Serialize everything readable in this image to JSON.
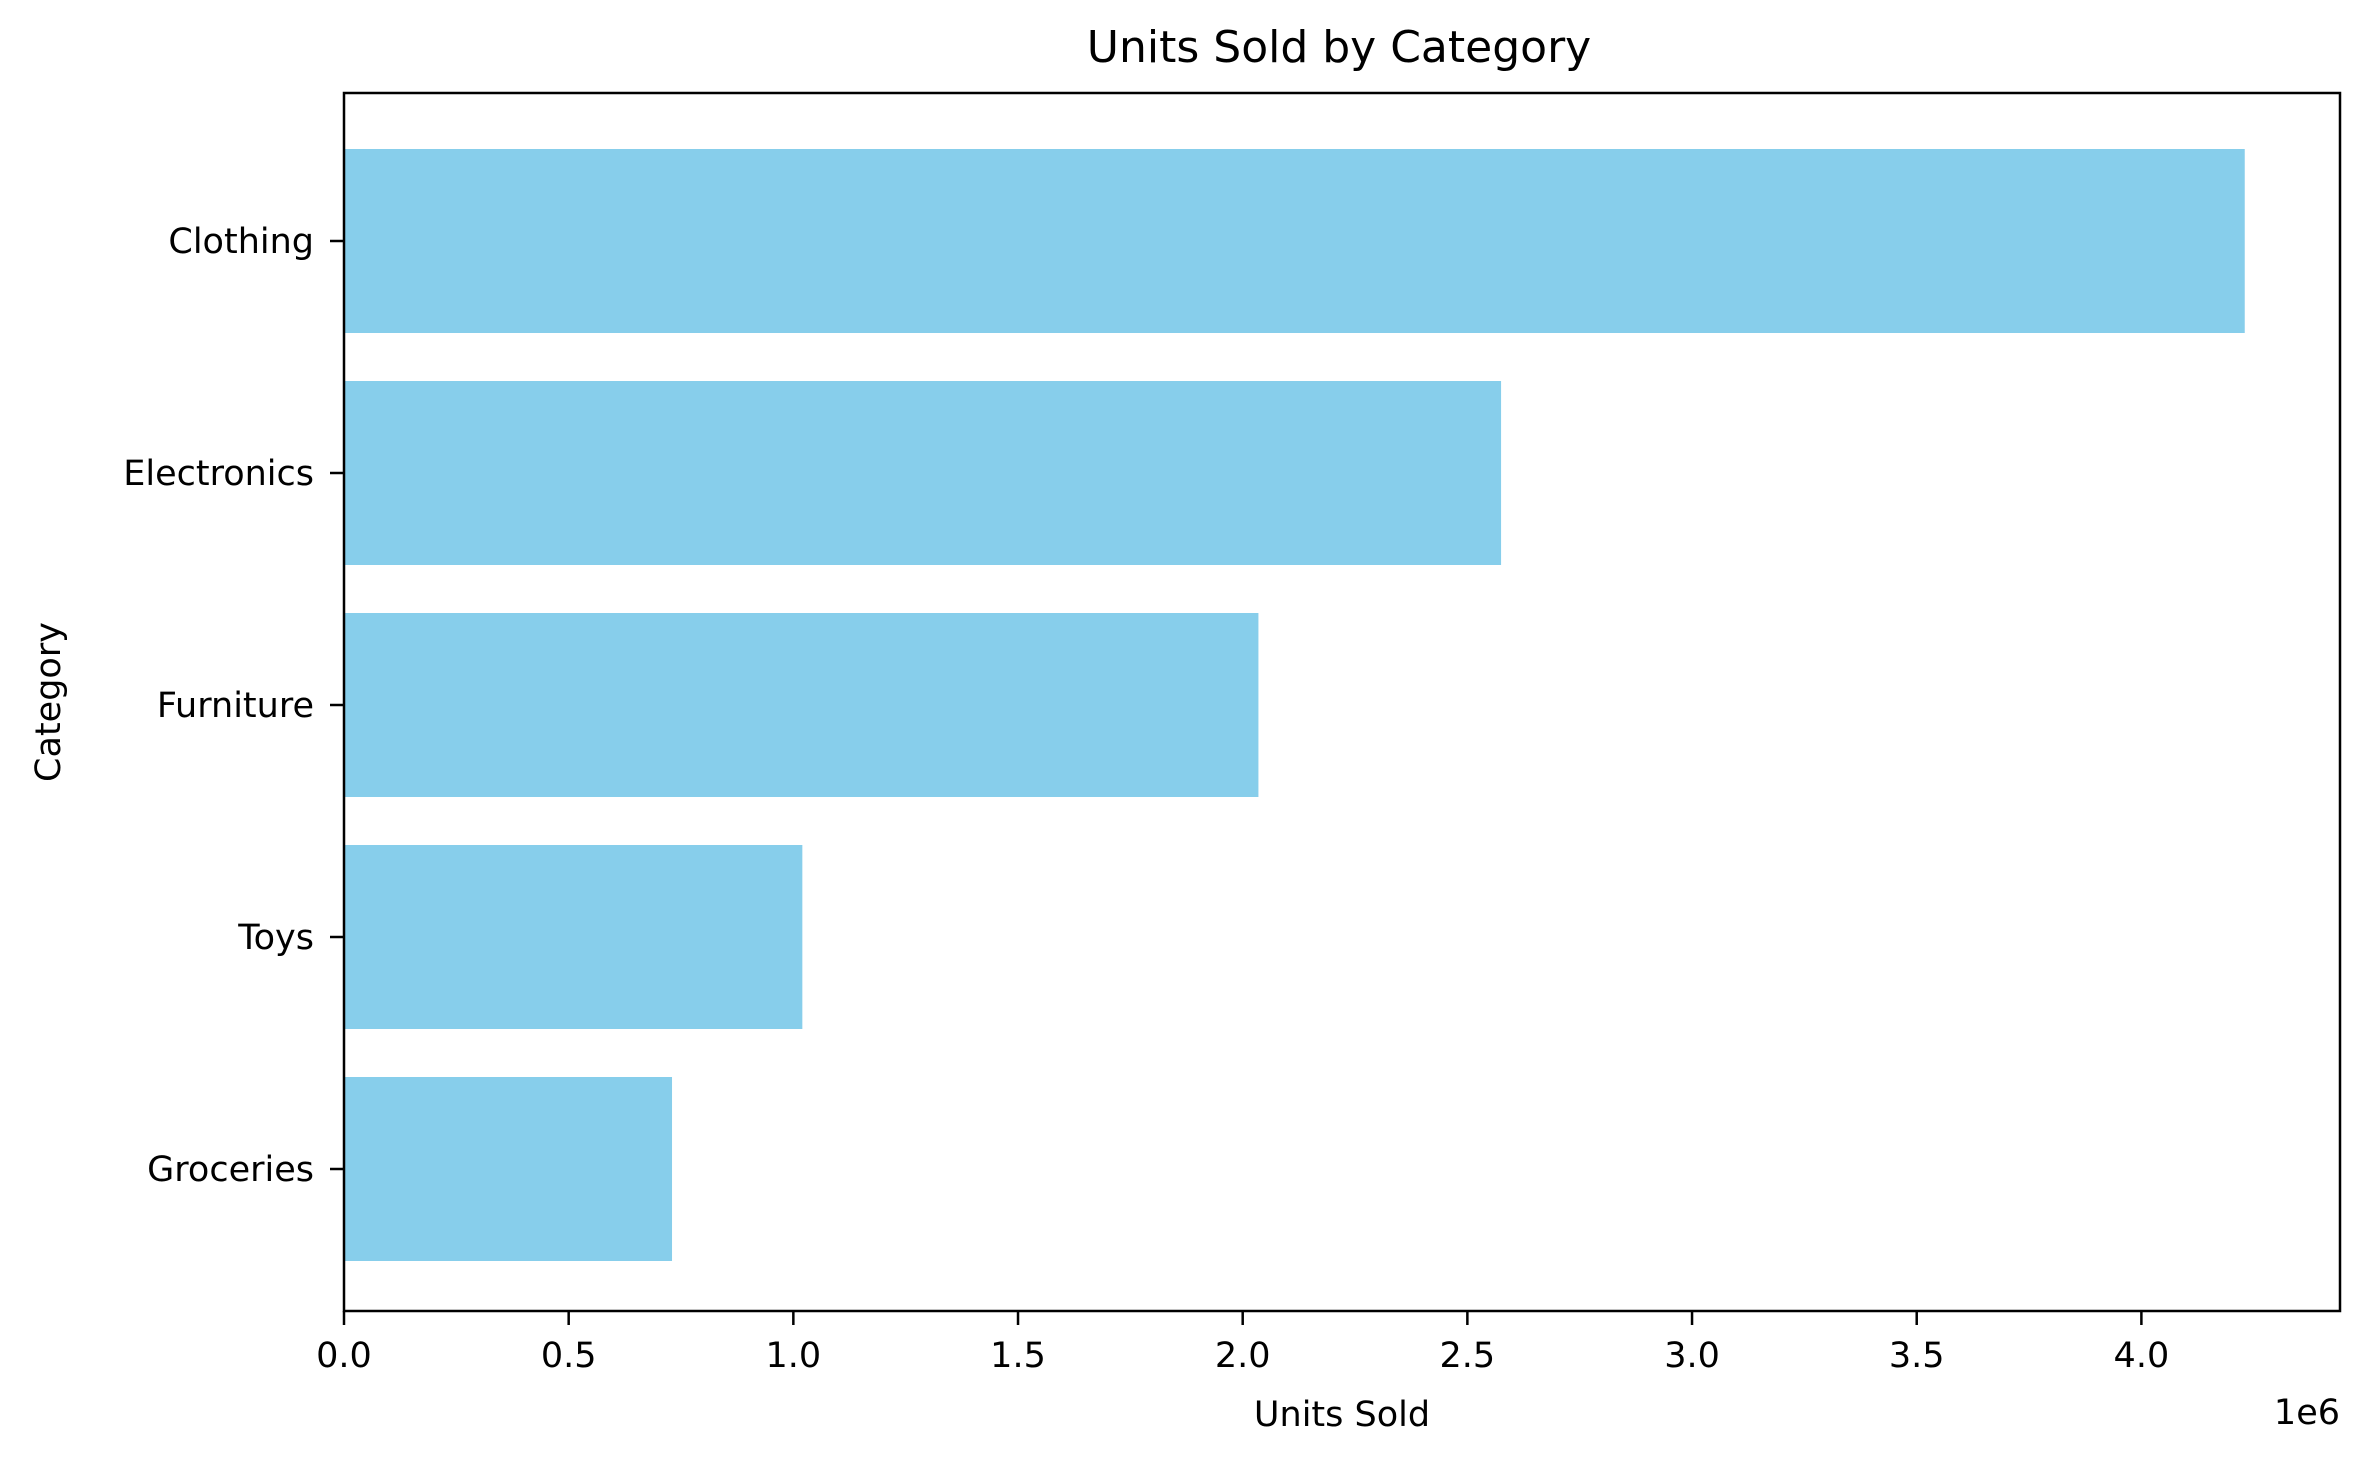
{
  "chart_data": {
    "type": "bar",
    "orientation": "horizontal",
    "title": "Units Sold by Category",
    "xlabel": "Units Sold",
    "ylabel": "Category",
    "categories": [
      "Clothing",
      "Electronics",
      "Furniture",
      "Toys",
      "Groceries"
    ],
    "values": [
      4230000,
      2575000,
      2035000,
      1020000,
      730000
    ],
    "bar_color": "#87CEEB",
    "xlim": [
      0,
      4442000
    ],
    "x_scale_factor": 1000000,
    "x_offset_label": "1e6",
    "xticks": [
      0,
      500000,
      1000000,
      1500000,
      2000000,
      2500000,
      3000000,
      3500000,
      4000000
    ],
    "xtick_labels": [
      "0.0",
      "0.5",
      "1.0",
      "1.5",
      "2.0",
      "2.5",
      "3.0",
      "3.5",
      "4.0"
    ],
    "grid": false,
    "legend": "none"
  }
}
